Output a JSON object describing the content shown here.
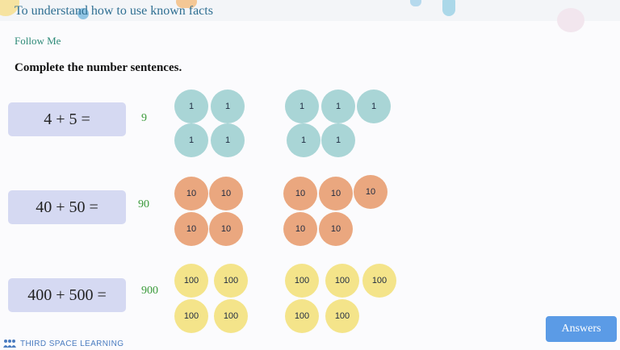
{
  "header": {
    "lesson_title": "To understand how to use known facts"
  },
  "section_label": "Follow Me",
  "instruction": "Complete the number sentences.",
  "rows": [
    {
      "equation": "4 + 5 =",
      "answer": "9",
      "group_a": [
        "1",
        "1",
        "1",
        "1"
      ],
      "group_b": [
        "1",
        "1",
        "1",
        "1",
        "1"
      ]
    },
    {
      "equation": "40 + 50 =",
      "answer": "90",
      "group_a": [
        "10",
        "10",
        "10",
        "10"
      ],
      "group_b": [
        "10",
        "10",
        "10",
        "10",
        "10"
      ]
    },
    {
      "equation": "400 + 500 =",
      "answer": "900",
      "group_a": [
        "100",
        "100",
        "100",
        "100"
      ],
      "group_b": [
        "100",
        "100",
        "100",
        "100",
        "100"
      ]
    }
  ],
  "footer": {
    "brand": "THIRD SPACE LEARNING",
    "answers_label": "Answers"
  },
  "colors": {
    "ones_counter": "#a9d5d6",
    "tens_counter": "#eaa77f",
    "hundreds_counter": "#f4e48a",
    "answer_text": "#3a9a3a",
    "answers_button": "#5b9be6"
  }
}
